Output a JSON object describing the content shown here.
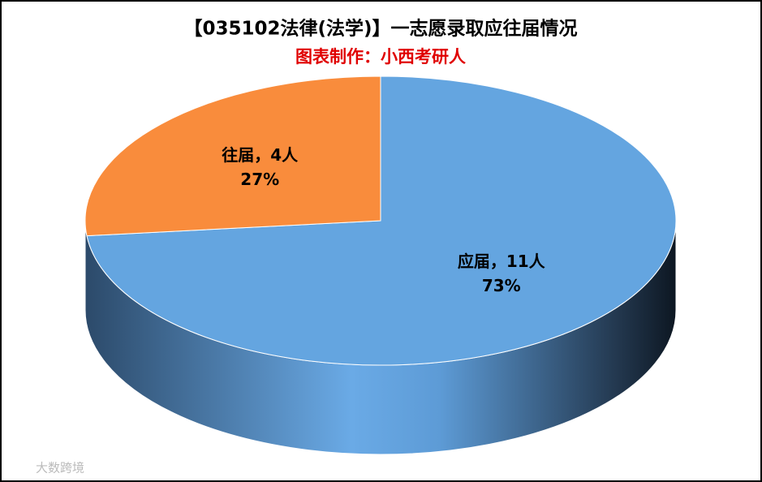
{
  "chart_data": {
    "type": "pie",
    "title": "【035102法律(法学)】一志愿录取应往届情况",
    "subtitle": "图表制作：小西考研人",
    "categories": [
      "应届",
      "往届"
    ],
    "values": [
      11,
      4
    ],
    "value_labels": [
      "应届，11人",
      "往届，4人"
    ],
    "percent_labels": [
      "73%",
      "27%"
    ],
    "colors": [
      "#64a5e0",
      "#f98c3c"
    ],
    "watermark": "大数跨境"
  }
}
